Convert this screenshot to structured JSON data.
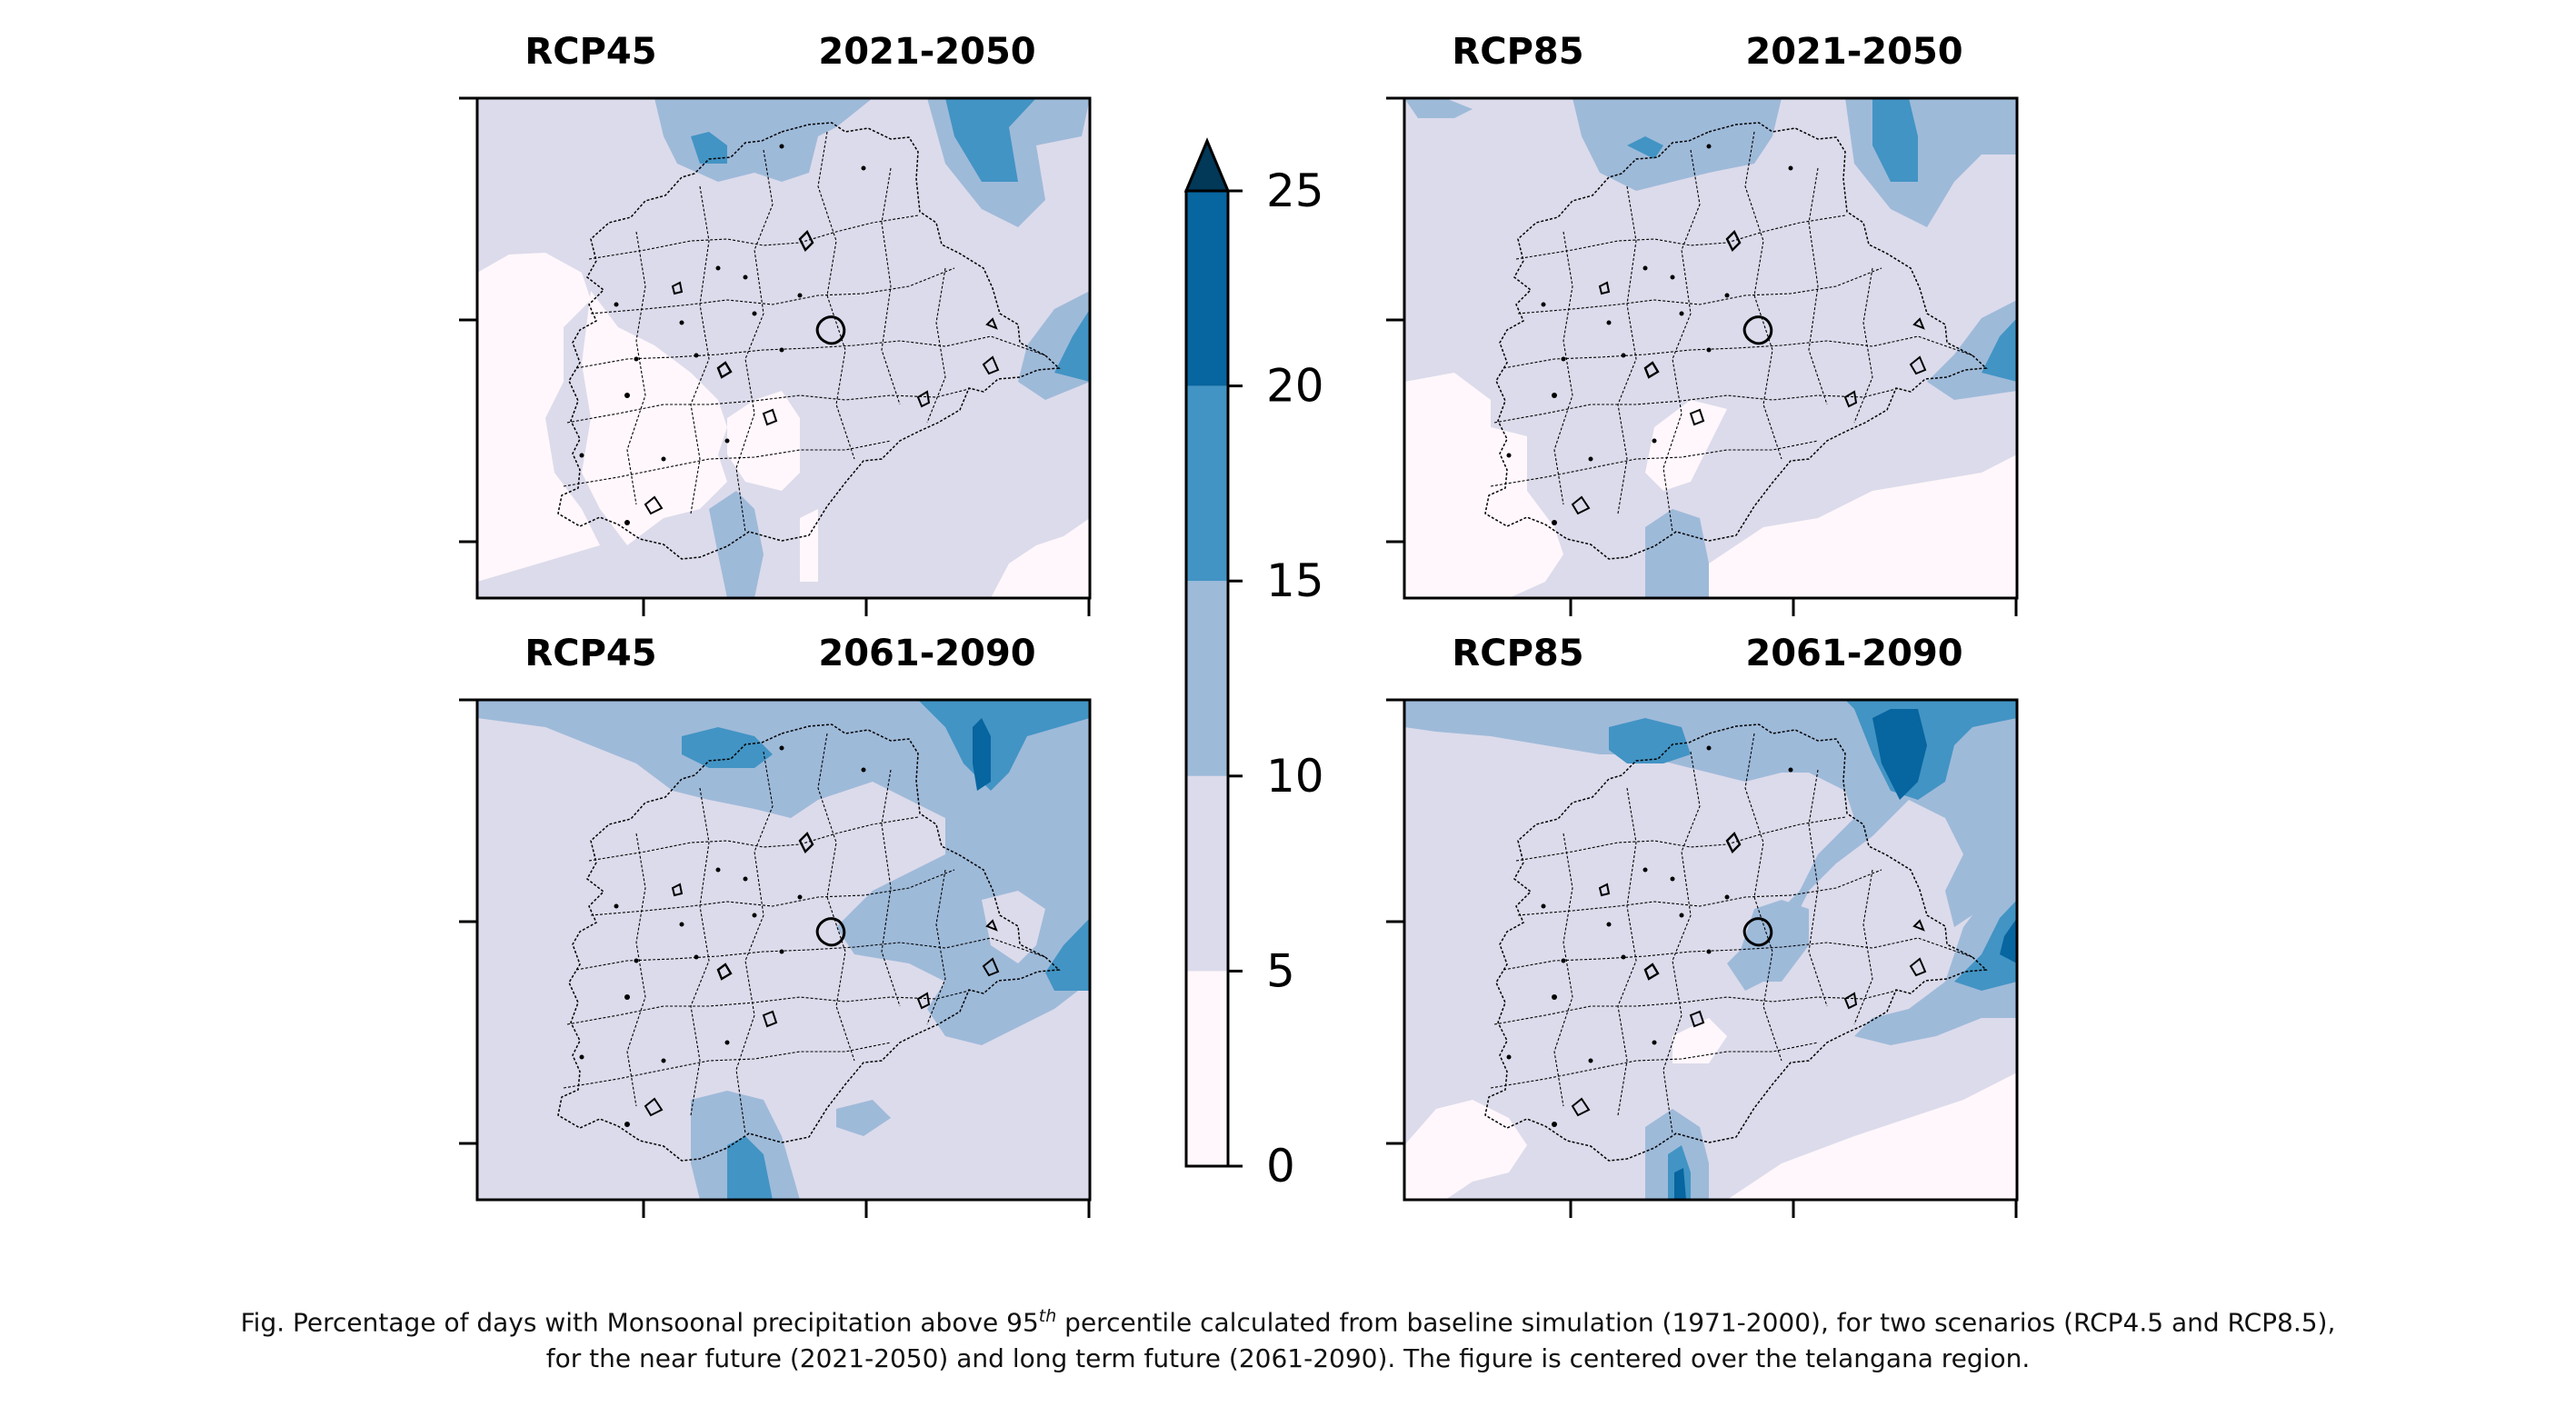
{
  "chart_data": {
    "type": "heatmap",
    "panels": [
      {
        "scenario": "RCP45",
        "period": "2021-2050",
        "range_pct": [
          0,
          20
        ]
      },
      {
        "scenario": "RCP85",
        "period": "2021-2050",
        "range_pct": [
          0,
          20
        ]
      },
      {
        "scenario": "RCP45",
        "period": "2061-2090",
        "range_pct": [
          0,
          20
        ]
      },
      {
        "scenario": "RCP85",
        "period": "2061-2090",
        "range_pct": [
          0,
          25
        ]
      }
    ],
    "colorbar": {
      "levels": [
        0,
        5,
        10,
        15,
        20,
        25
      ],
      "tick_labels": [
        "0",
        "5",
        "10",
        "15",
        "20",
        "25"
      ],
      "colors": [
        "#fff7fb",
        "#dcdbeb",
        "#9ebad9",
        "#4294c4",
        "#07659f"
      ],
      "extend_color": "#023858",
      "extend": "max"
    }
  },
  "caption": {
    "line1_pre": "Fig. Percentage of days with Monsoonal precipitation above 95",
    "line1_sup": "th",
    "line1_post": " percentile calculated from baseline simulation (1971-2000), for two scenarios (RCP4.5 and RCP8.5),",
    "line2": "for the near future (2021-2050) and long term future (2061-2090). The figure is centered over the telangana region."
  }
}
